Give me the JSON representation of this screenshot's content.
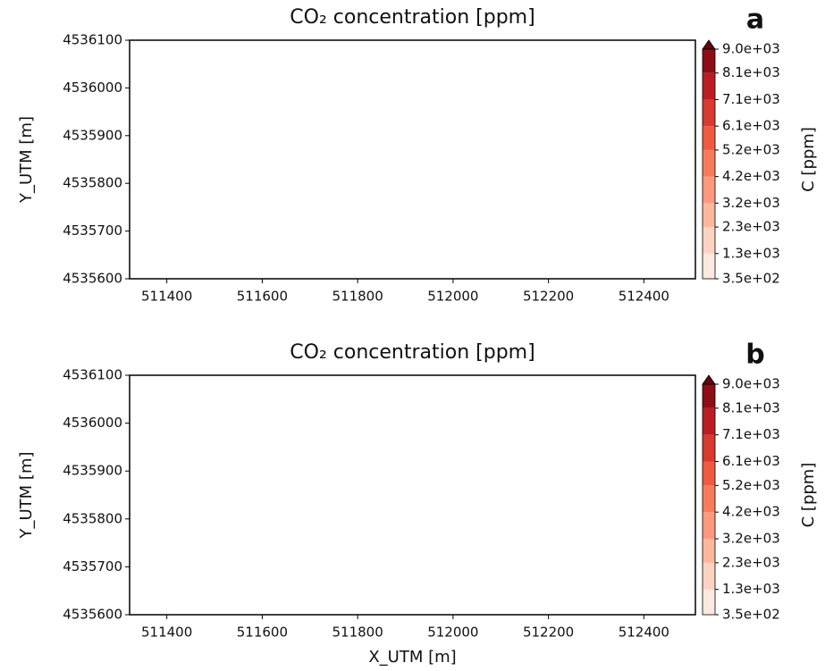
{
  "chart_data": [
    {
      "type": "contour",
      "title": "CO₂ concentration [ppm]",
      "panel_label": "a",
      "ylabel": "Y_UTM [m]",
      "xlim": [
        511322,
        512508
      ],
      "xticks": [
        511400,
        511600,
        511800,
        512000,
        512200,
        512400
      ],
      "ylim": [
        4535600,
        4536100
      ],
      "yticks": [
        4535600,
        4535700,
        4535800,
        4535900,
        4536000,
        4536100
      ],
      "colorbar": {
        "label": "C [ppm]",
        "lim": [
          350,
          9000
        ],
        "ticks": [
          {
            "value": 350,
            "label": "3.5e+02"
          },
          {
            "value": 1300,
            "label": "1.3e+03"
          },
          {
            "value": 2300,
            "label": "2.3e+03"
          },
          {
            "value": 3200,
            "label": "3.2e+03"
          },
          {
            "value": 4200,
            "label": "4.2e+03"
          },
          {
            "value": 5200,
            "label": "5.2e+03"
          },
          {
            "value": 6100,
            "label": "6.1e+03"
          },
          {
            "value": 7100,
            "label": "7.1e+03"
          },
          {
            "value": 8100,
            "label": "8.1e+03"
          },
          {
            "value": 9000,
            "label": "9.0e+03"
          }
        ],
        "colors": [
          "#fde9e0",
          "#fcd3c1",
          "#fcb79c",
          "#fc9a7b",
          "#f97b5d",
          "#ef5a41",
          "#d93a2f",
          "#bb1d23",
          "#8e0e18"
        ],
        "over_color": "#67000d"
      }
    },
    {
      "type": "contour",
      "title": "CO₂ concentration [ppm]",
      "panel_label": "b",
      "ylabel": "Y_UTM [m]",
      "xlabel": "X_UTM [m]",
      "xlim": [
        511322,
        512508
      ],
      "xticks": [
        511400,
        511600,
        511800,
        512000,
        512200,
        512400
      ],
      "ylim": [
        4535600,
        4536100
      ],
      "yticks": [
        4535600,
        4535700,
        4535800,
        4535900,
        4536000,
        4536100
      ],
      "colorbar": {
        "label": "C [ppm]",
        "lim": [
          350,
          9000
        ],
        "ticks": [
          {
            "value": 350,
            "label": "3.5e+02"
          },
          {
            "value": 1300,
            "label": "1.3e+03"
          },
          {
            "value": 2300,
            "label": "2.3e+03"
          },
          {
            "value": 3200,
            "label": "3.2e+03"
          },
          {
            "value": 4200,
            "label": "4.2e+03"
          },
          {
            "value": 5200,
            "label": "5.2e+03"
          },
          {
            "value": 6100,
            "label": "6.1e+03"
          },
          {
            "value": 7100,
            "label": "7.1e+03"
          },
          {
            "value": 8100,
            "label": "8.1e+03"
          },
          {
            "value": 9000,
            "label": "9.0e+03"
          }
        ],
        "colors": [
          "#fde9e0",
          "#fcd3c1",
          "#fcb79c",
          "#fc9a7b",
          "#f97b5d",
          "#ef5a41",
          "#d93a2f",
          "#bb1d23",
          "#8e0e18"
        ],
        "over_color": "#67000d"
      }
    }
  ]
}
